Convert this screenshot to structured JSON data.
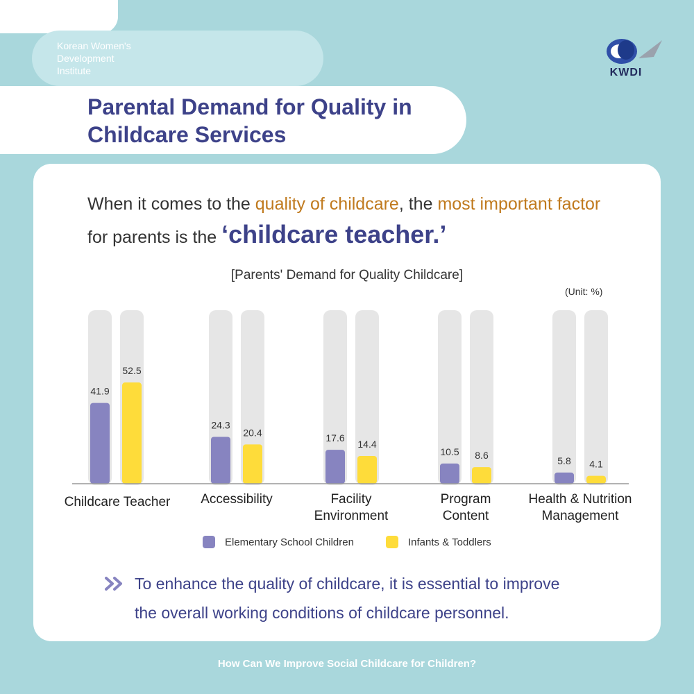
{
  "header": {
    "org_name": "Korean Women's\nDevelopment\nInstitute",
    "logo_text": "KWDI",
    "title": "Parental Demand for Quality in\nChildcare Services"
  },
  "headline": {
    "part1": "When it comes to the ",
    "highlight1": "quality of childcare",
    "part2": ", the ",
    "highlight2": "most important factor",
    "part3": "for parents is the ",
    "emphasis": "‘childcare teacher.’"
  },
  "chart_data": {
    "type": "bar",
    "title": "[Parents' Demand for Quality Childcare]",
    "unit": "(Unit: %)",
    "categories": [
      "Childcare Teacher",
      "Accessibility",
      "Facility\nEnvironment",
      "Program\nContent",
      "Health & Nutrition\nManagement"
    ],
    "series": [
      {
        "name": "Elementary School Children",
        "color": "#8784c0",
        "values": [
          41.9,
          24.3,
          17.6,
          10.5,
          5.8
        ]
      },
      {
        "name": "Infants & Toddlers",
        "color": "#fedc3a",
        "values": [
          52.5,
          20.4,
          14.4,
          8.6,
          4.1
        ]
      }
    ],
    "ylim": [
      0,
      90
    ],
    "legend": "bottom-center",
    "grid": false
  },
  "conclusion": "To enhance the quality of childcare, it is essential to improve\nthe overall working conditions of childcare personnel.",
  "footer": "How Can We Improve Social Childcare for Children?",
  "colors": {
    "background": "#a9d7dc",
    "title": "#3d4289",
    "highlight": "#c07a1e",
    "track": "#e6e6e6"
  },
  "icons": {
    "logo": "kwdi-logo-icon",
    "bullet": "double-chevron-right-icon"
  }
}
